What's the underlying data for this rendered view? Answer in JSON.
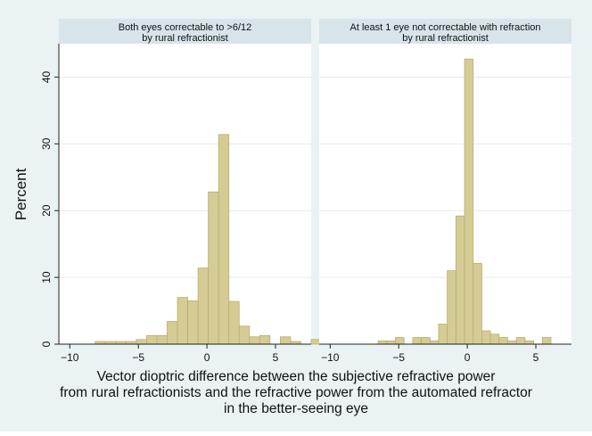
{
  "chart_data": [
    {
      "type": "bar",
      "title": "Both eyes correctable to >6/12 by rural refractionist",
      "title_lines": [
        "Both eyes correctable to >6/12",
        "by rural refractionist"
      ],
      "ylabel": "Percent",
      "xlim": [
        -10.8,
        7.6
      ],
      "ylim": [
        0,
        45
      ],
      "xticks": [
        -10,
        -5,
        0,
        5
      ],
      "yticks": [
        0,
        10,
        20,
        30,
        40
      ],
      "bin_width": 0.75,
      "bin_start": -8.15,
      "values": [
        0.4,
        0.4,
        0.4,
        0.4,
        0.7,
        1.3,
        1.3,
        3.4,
        7.0,
        6.5,
        11.4,
        22.8,
        31.4,
        6.4,
        2.7,
        1.1,
        1.3,
        0,
        1.1,
        0.4,
        0,
        0.7
      ]
    },
    {
      "type": "bar",
      "title": "At least 1 eye not correctable with refraction by rural refractionist",
      "title_lines": [
        "At least 1 eye not correctable with refraction",
        "by rural refractionist"
      ],
      "ylabel": "",
      "xlim": [
        -10.8,
        7.6
      ],
      "ylim": [
        0,
        45
      ],
      "xticks": [
        -10,
        -5,
        0,
        5
      ],
      "yticks": [
        0,
        10,
        20,
        30,
        40
      ],
      "bin_width": 0.63,
      "bin_start": -6.5,
      "values": [
        0.5,
        0.5,
        1.0,
        0,
        1.0,
        1.0,
        0.5,
        3.0,
        11.0,
        19.2,
        42.7,
        12.1,
        2.0,
        1.5,
        1.0,
        0.5,
        1.0,
        0.5,
        0,
        1.0
      ]
    }
  ],
  "axis": {
    "ylabel": "Percent",
    "xlabel_lines": [
      "Vector dioptric difference between the subjective refractive power",
      "from rural refractionists and the refractive power from the automated refractor",
      "in the better-seeing eye"
    ]
  },
  "colors": {
    "background": "#eaf2f3",
    "panel": "#ffffff",
    "title_strip": "#d7e4ea",
    "grid": "#e6eaec",
    "bar_fill": "#d4cc94",
    "bar_stroke": "#b8ae70",
    "axis": "#222222"
  }
}
